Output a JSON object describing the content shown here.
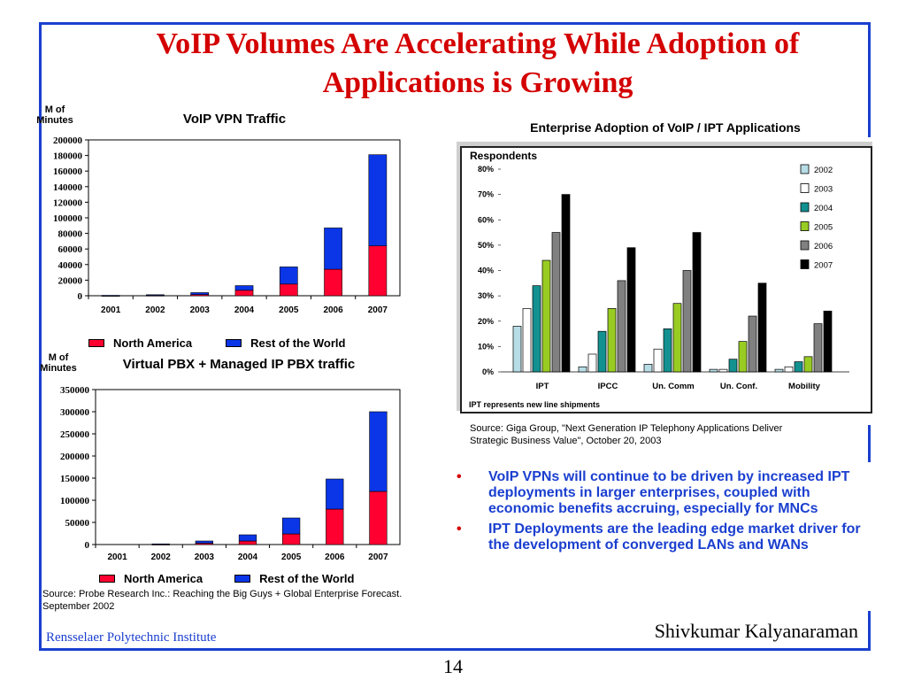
{
  "slide": {
    "title": "VoIP Volumes Are Accelerating While Adoption of Applications is Growing",
    "footer_left": "Rensselaer Polytechnic Institute",
    "footer_right": "Shivkumar Kalyanaraman",
    "page_number": "14",
    "colors": {
      "frame": "#1a3fcf",
      "title": "#d40000",
      "bullet_text": "#1a3fcf",
      "north_america": "#ff0030",
      "rest_of_world": "#0a36e8"
    }
  },
  "bullets": [
    "VoIP VPNs will continue to be driven by increased IPT deployments in larger enterprises, coupled with economic benefits accruing, especially for MNCs",
    "IPT Deployments are the leading edge market driver for the development of converged LANs and  WANs"
  ],
  "bullet_marker": "•",
  "sources": {
    "left": "Source: Probe Research Inc.: Reaching the Big Guys + Global Enterprise Forecast.  September 2002",
    "right": "Source: Giga Group, \"Next Generation IP Telephony Applications Deliver Strategic Business Value\", October 20, 2003"
  },
  "chart_data": [
    {
      "type": "bar",
      "stacked": true,
      "title": "VoIP VPN Traffic",
      "ylabel": "M of Minutes",
      "categories": [
        "2001",
        "2002",
        "2003",
        "2004",
        "2005",
        "2006",
        "2007"
      ],
      "series": [
        {
          "name": "North America",
          "color": "#ff0030",
          "values": [
            200,
            500,
            1500,
            7000,
            15000,
            34000,
            64000
          ]
        },
        {
          "name": "Rest of the World",
          "color": "#0a36e8",
          "values": [
            300,
            800,
            2500,
            6000,
            22000,
            53000,
            117000
          ]
        }
      ],
      "ylim": [
        0,
        200000
      ],
      "yticks": [
        "0",
        "20000",
        "40000",
        "60000",
        "80000",
        "100000",
        "120000",
        "140000",
        "160000",
        "180000",
        "200000"
      ],
      "grid": false,
      "legend": "bottom"
    },
    {
      "type": "bar",
      "stacked": true,
      "title": "Virtual PBX + Managed IP PBX traffic",
      "ylabel": "M of Minutes",
      "categories": [
        "2001",
        "2002",
        "2003",
        "2004",
        "2005",
        "2006",
        "2007"
      ],
      "series": [
        {
          "name": "North America",
          "color": "#ff0030",
          "values": [
            0,
            500,
            3000,
            8000,
            24000,
            80000,
            120000
          ]
        },
        {
          "name": "Rest of the World",
          "color": "#0a36e8",
          "values": [
            0,
            1000,
            5000,
            14000,
            36000,
            68000,
            180000
          ]
        }
      ],
      "ylim": [
        0,
        350000
      ],
      "yticks": [
        "0",
        "50000",
        "100000",
        "150000",
        "200000",
        "250000",
        "300000",
        "350000"
      ],
      "grid": false,
      "legend": "bottom"
    },
    {
      "type": "bar",
      "title": "Enterprise Adoption of VoIP / IPT Applications",
      "ylabel": "Respondents",
      "categories": [
        "IPT",
        "IPCC",
        "Un. Comm",
        "Un. Conf.",
        "Mobility"
      ],
      "series": [
        {
          "name": "2002",
          "color": "#b7dde6",
          "values": [
            18,
            2,
            3,
            1,
            1
          ]
        },
        {
          "name": "2003",
          "color": "#ffffff",
          "values": [
            25,
            7,
            9,
            1,
            2
          ]
        },
        {
          "name": "2004",
          "color": "#139191",
          "values": [
            34,
            16,
            17,
            5,
            4
          ]
        },
        {
          "name": "2005",
          "color": "#99cc22",
          "values": [
            44,
            25,
            27,
            12,
            6
          ]
        },
        {
          "name": "2006",
          "color": "#808080",
          "values": [
            55,
            36,
            40,
            22,
            19
          ]
        },
        {
          "name": "2007",
          "color": "#000000",
          "values": [
            70,
            49,
            55,
            35,
            24
          ]
        }
      ],
      "ylim": [
        0,
        80
      ],
      "yticks": [
        "0%",
        "10%",
        "20%",
        "30%",
        "40%",
        "50%",
        "60%",
        "70%",
        "80%"
      ],
      "grid": false,
      "legend": "right",
      "note": "IPT represents new line shipments"
    }
  ]
}
